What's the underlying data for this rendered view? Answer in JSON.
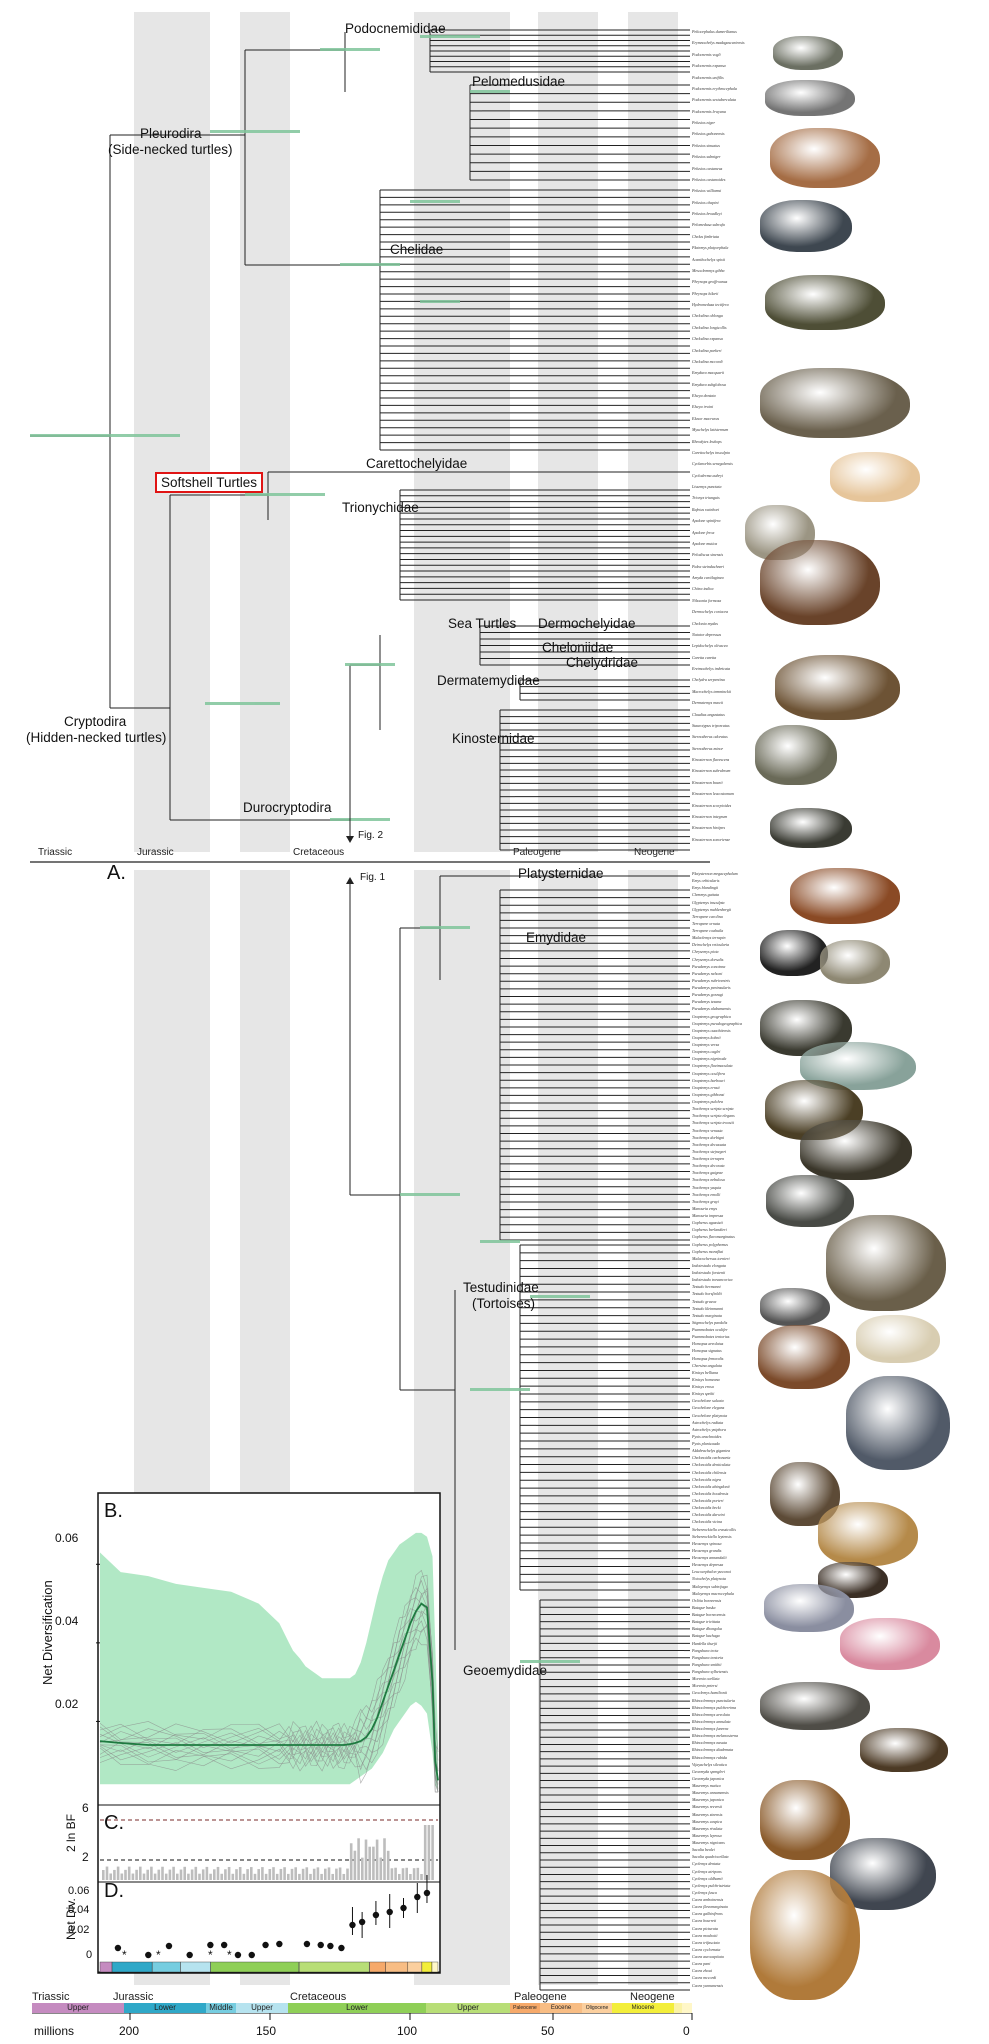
{
  "panelA": {
    "letter": "A.",
    "clades": {
      "podocnemididae": "Podocnemididae",
      "pelomedusidae": "Pelomedusidae",
      "pleurodira": "Pleurodira",
      "pleurodira_common": "(Side-necked turtles)",
      "chelidae": "Chelidae",
      "carettochelyidae": "Carettochelyidae",
      "softshell": "Softshell Turtles",
      "trionychidae": "Trionychidae",
      "sea_turtles": "Sea Turtles",
      "dermochelyidae": "Dermochelyidae",
      "cheloniidae": "Cheloniidae",
      "chelydridae": "Chelydridae",
      "dermatemydidae": "Dermatemydidae",
      "kinosternidae": "Kinosternidae",
      "cryptodira": "Cryptodira",
      "cryptodira_common": "(Hidden-necked turtles)",
      "durocryptodira": "Durocryptodira"
    },
    "fig_link_down": "Fig. 2",
    "periods": [
      "Triassic",
      "Jurassic",
      "Cretaceous",
      "Paleogene",
      "Neogene"
    ],
    "taxa": [
      "Peltocephalus dumerilianus",
      "Erymnochelys madagascariensis",
      "Podocnemis vogli",
      "Podocnemis expansa",
      "Podocnemis unifilis",
      "Podocnemis erythrocephala",
      "Podocnemis sextuberculata",
      "Podocnemis lewyana",
      "Pelusios niger",
      "Pelusios gabonensis",
      "Pelusios sinuatus",
      "Pelusios subniger",
      "Pelusios castaneus",
      "Pelusios castanoides",
      "Pelusios williamsi",
      "Pelusios chapini",
      "Pelusios broadleyi",
      "Pelomedusa subrufa",
      "Chelus fimbriata",
      "Platemys platycephala",
      "Acanthochelys spixii",
      "Mesoclemmys gibba",
      "Phrynops geoffroanus",
      "Phrynops hilarii",
      "Hydromedusa tectifera",
      "Chelodina oblonga",
      "Chelodina longicollis",
      "Chelodina expansa",
      "Chelodina parkeri",
      "Chelodina mccordi",
      "Emydura macquarii",
      "Emydura subglobosa",
      "Elseya dentata",
      "Elseya irwini",
      "Elusor macrurus",
      "Myuchelys latisternum",
      "Rheodytes leukops",
      "Carettochelys insculpta",
      "Cyclanorbis senegalensis",
      "Cycloderma aubryi",
      "Lissemys punctata",
      "Trionyx triunguis",
      "Rafetus swinhoei",
      "Apalone spinifera",
      "Apalone ferox",
      "Apalone mutica",
      "Pelodiscus sinensis",
      "Palea steindachneri",
      "Amyda cartilaginea",
      "Chitra indica",
      "Nilssonia formosa",
      "Dermochelys coriacea",
      "Chelonia mydas",
      "Natator depressus",
      "Lepidochelys olivacea",
      "Caretta caretta",
      "Eretmochelys imbricata",
      "Chelydra serpentina",
      "Macrochelys temminckii",
      "Dermatemys mawii",
      "Claudius angustatus",
      "Staurotypus triporcatus",
      "Sternotherus odoratus",
      "Sternotherus minor",
      "Kinosternon flavescens",
      "Kinosternon subrubrum",
      "Kinosternon baurii",
      "Kinosternon leucostomum",
      "Kinosternon scorpioides",
      "Kinosternon integrum",
      "Kinosternon hirtipes",
      "Kinosternon sonoriense"
    ]
  },
  "panelA2": {
    "fig_link_up": "Fig. 1",
    "clades": {
      "platysternidae": "Platysternidae",
      "emydidae": "Emydidae",
      "testudinidae": "Testudinidae",
      "testudinidae_common": "(Tortoises)",
      "geoemydidae": "Geoemydidae"
    },
    "taxa": [
      "Platysternon megacephalum",
      "Emys orbicularis",
      "Emys blandingii",
      "Clemmys guttata",
      "Glyptemys insculpta",
      "Glyptemys muhlenbergii",
      "Terrapene carolina",
      "Terrapene ornata",
      "Terrapene coahuila",
      "Malaclemys terrapin",
      "Deirochelys reticularia",
      "Chrysemys picta",
      "Chrysemys dorsalis",
      "Pseudemys concinna",
      "Pseudemys nelsoni",
      "Pseudemys rubriventris",
      "Pseudemys peninsularis",
      "Pseudemys gorzugi",
      "Pseudemys texana",
      "Pseudemys alabamensis",
      "Graptemys geographica",
      "Graptemys pseudogeographica",
      "Graptemys ouachitensis",
      "Graptemys kohnii",
      "Graptemys versa",
      "Graptemys caglei",
      "Graptemys nigrinoda",
      "Graptemys flavimaculata",
      "Graptemys oculifera",
      "Graptemys barbouri",
      "Graptemys ernsti",
      "Graptemys gibbonsi",
      "Graptemys pulchra",
      "Trachemys scripta scripta",
      "Trachemys scripta elegans",
      "Trachemys scripta troostii",
      "Trachemys venusta",
      "Trachemys dorbigni",
      "Trachemys decussata",
      "Trachemys stejnegeri",
      "Trachemys terrapen",
      "Trachemys decorata",
      "Trachemys gaigeae",
      "Trachemys nebulosa",
      "Trachemys yaquia",
      "Trachemys emolli",
      "Trachemys grayi",
      "Manouria emys",
      "Manouria impressa",
      "Gopherus agassizii",
      "Gopherus berlandieri",
      "Gopherus flavomarginatus",
      "Gopherus polyphemus",
      "Gopherus morafkai",
      "Malacochersus tornieri",
      "Indotestudo elongata",
      "Indotestudo forstenii",
      "Indotestudo travancorica",
      "Testudo hermanni",
      "Testudo horsfieldii",
      "Testudo graeca",
      "Testudo kleinmanni",
      "Testudo marginata",
      "Stigmochelys pardalis",
      "Psammobates oculifer",
      "Psammobates tentorius",
      "Homopus areolatus",
      "Homopus signatus",
      "Homopus femoralis",
      "Chersina angulata",
      "Kinixys belliana",
      "Kinixys homeana",
      "Kinixys erosa",
      "Kinixys spekii",
      "Geochelone sulcata",
      "Geochelone elegans",
      "Geochelone platynota",
      "Astrochelys radiata",
      "Astrochelys yniphora",
      "Pyxis arachnoides",
      "Pyxis planicauda",
      "Aldabrachelys gigantea",
      "Chelonoidis carbonaria",
      "Chelonoidis denticulata",
      "Chelonoidis chilensis",
      "Chelonoidis nigra",
      "Chelonoidis abingdonii",
      "Chelonoidis hoodensis",
      "Chelonoidis porteri",
      "Chelonoidis becki",
      "Chelonoidis darwini",
      "Chelonoidis vicina",
      "Siebenrockiella crassicollis",
      "Siebenrockiella leytensis",
      "Heosemys spinosa",
      "Heosemys grandis",
      "Heosemys annandalii",
      "Heosemys depressa",
      "Leucocephalon yuwonoi",
      "Notochelys platynota",
      "Malayemys subtrijuga",
      "Malayemys macrocephala",
      "Orlitia borneensis",
      "Batagur baska",
      "Batagur borneoensis",
      "Batagur trivittata",
      "Batagur dhongoka",
      "Batagur kachuga",
      "Hardella thurjii",
      "Pangshura tecta",
      "Pangshura tentoria",
      "Pangshura smithii",
      "Pangshura sylhetensis",
      "Morenia ocellata",
      "Morenia petersi",
      "Geoclemys hamiltonii",
      "Rhinoclemmys punctularia",
      "Rhinoclemmys pulcherrima",
      "Rhinoclemmys areolata",
      "Rhinoclemmys annulata",
      "Rhinoclemmys funerea",
      "Rhinoclemmys melanosterna",
      "Rhinoclemmys nasuta",
      "Rhinoclemmys diademata",
      "Rhinoclemmys rubida",
      "Vijayachelys silvatica",
      "Geoemyda spengleri",
      "Geoemyda japonica",
      "Mauremys mutica",
      "Mauremys annamensis",
      "Mauremys japonica",
      "Mauremys reevesii",
      "Mauremys sinensis",
      "Mauremys caspica",
      "Mauremys rivulata",
      "Mauremys leprosa",
      "Mauremys nigricans",
      "Sacalia bealei",
      "Sacalia quadriocellata",
      "Cyclemys dentata",
      "Cyclemys atripons",
      "Cyclemys oldhamii",
      "Cyclemys pulchristriata",
      "Cyclemys fusca",
      "Cuora amboinensis",
      "Cuora flavomarginata",
      "Cuora galbinifrons",
      "Cuora bourreti",
      "Cuora picturata",
      "Cuora mouhotii",
      "Cuora trifasciata",
      "Cuora cyclornata",
      "Cuora aurocapitata",
      "Cuora pani",
      "Cuora zhoui",
      "Cuora mccordi",
      "Cuora yunnanensis"
    ]
  },
  "panelB": {
    "letter": "B.",
    "ylabel": "Net Diversification",
    "yticks": [
      "0.06",
      "0.04",
      "0.02"
    ]
  },
  "panelC": {
    "letter": "C.",
    "ylabel": "2 ln BF",
    "yticks": [
      "6",
      "2"
    ]
  },
  "panelD": {
    "letter": "D.",
    "ylabel": "Net Div.",
    "yticks": [
      "0.06",
      "0.04",
      "0.02",
      "0"
    ],
    "asterisk": "*"
  },
  "timescale": {
    "periods": [
      "Triassic",
      "Jurassic",
      "Cretaceous",
      "Paleogene",
      "Neogene"
    ],
    "epochs": [
      "Upper",
      "Lower",
      "Middle",
      "Upper",
      "Lower",
      "Upper",
      "Paleocene",
      "Eocene",
      "Oligocene",
      "Miocene"
    ],
    "unit_label": "millions",
    "ticks": [
      "200",
      "150",
      "100",
      "50",
      "0"
    ]
  },
  "chart_data": {
    "type": "line",
    "title": "",
    "xlabel": "millions",
    "ylabel": "Net Diversification",
    "x": [
      245,
      230,
      210,
      190,
      170,
      150,
      130,
      115,
      108,
      105,
      100,
      96,
      92,
      88,
      84,
      80,
      76,
      72,
      68,
      64,
      60,
      56,
      52,
      48,
      44,
      40,
      36,
      32,
      28,
      24,
      20,
      16,
      12,
      8,
      4,
      2,
      0
    ],
    "series": [
      {
        "name": "",
        "values": [
          0.015,
          0.0145,
          0.014,
          0.014,
          0.014,
          0.014,
          0.014,
          0.014,
          0.014,
          0.014,
          0.014,
          0.014,
          0.014,
          0.014,
          0.014,
          0.014,
          0.014,
          0.014,
          0.014,
          0.0142,
          0.0145,
          0.015,
          0.016,
          0.018,
          0.021,
          0.025,
          0.029,
          0.033,
          0.037,
          0.041,
          0.045,
          0.048,
          0.05,
          0.049,
          0.03,
          0.01,
          0.005
        ]
      },
      {
        "name": "",
        "values": [
          0.063,
          0.058,
          0.057,
          0.055,
          0.054,
          0.053,
          0.05,
          0.045,
          0.04,
          0.038,
          0.036,
          0.034,
          0.033,
          0.032,
          0.031,
          0.031,
          0.031,
          0.031,
          0.031,
          0.031,
          0.032,
          0.035,
          0.04,
          0.046,
          0.052,
          0.057,
          0.061,
          0.063,
          0.065,
          0.066,
          0.067,
          0.068,
          0.068,
          0.067,
          0.062,
          0.04,
          0.015
        ]
      },
      {
        "name": "",
        "values": [
          0.004,
          0.004,
          0.004,
          0.004,
          0.004,
          0.004,
          0.004,
          0.004,
          0.004,
          0.004,
          0.004,
          0.004,
          0.004,
          0.004,
          0.004,
          0.004,
          0.004,
          0.004,
          0.004,
          0.004,
          0.005,
          0.006,
          0.007,
          0.008,
          0.01,
          0.012,
          0.015,
          0.018,
          0.02,
          0.022,
          0.024,
          0.025,
          0.024,
          0.022,
          0.012,
          0.004,
          0.002
        ]
      }
    ],
    "ylim": [
      0,
      0.07
    ],
    "xlim": [
      245,
      0
    ],
    "rate_points": {
      "x": [
        232,
        210,
        195,
        180,
        165,
        155,
        145,
        135,
        125,
        115,
        95,
        85,
        78,
        70,
        62,
        55,
        45,
        35,
        25,
        15,
        8
      ],
      "y": [
        0.012,
        0.005,
        0.014,
        0.005,
        0.015,
        0.015,
        0.005,
        0.005,
        0.015,
        0.016,
        0.016,
        0.015,
        0.014,
        0.012,
        0.035,
        0.038,
        0.045,
        0.048,
        0.052,
        0.063,
        0.067
      ]
    },
    "bayes_factor_threshold": [
      2,
      6
    ]
  }
}
